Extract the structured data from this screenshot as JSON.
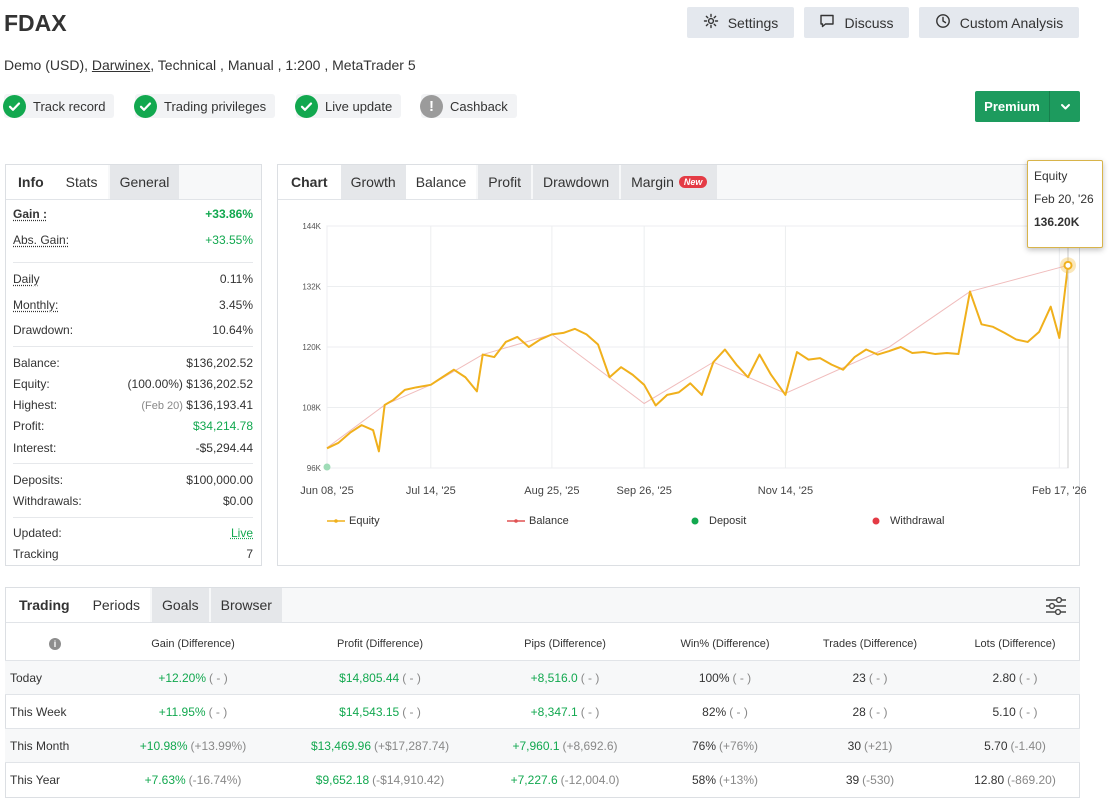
{
  "header": {
    "title": "FDAX",
    "account_type": "Demo (USD),",
    "broker": "Darwinex",
    "details": ", Technical , Manual , 1:200 , MetaTrader 5",
    "buttons": {
      "settings": "Settings",
      "discuss": "Discuss",
      "custom_analysis": "Custom Analysis"
    },
    "premium": "Premium"
  },
  "badges": [
    {
      "label": "Track record",
      "status": "ok"
    },
    {
      "label": "Trading privileges",
      "status": "ok"
    },
    {
      "label": "Live update",
      "status": "ok"
    },
    {
      "label": "Cashback",
      "status": "warning",
      "glyph": "!"
    }
  ],
  "info_panel": {
    "tabs": [
      "Info",
      "Stats",
      "General"
    ],
    "gain": {
      "label": "Gain :",
      "value": "+33.86%"
    },
    "abs_gain": {
      "label": "Abs. Gain:",
      "value": "+33.55%"
    },
    "daily": {
      "label": "Daily",
      "value": "0.11%"
    },
    "monthly": {
      "label": "Monthly:",
      "value": "3.45%"
    },
    "drawdown": {
      "label": "Drawdown:",
      "value": "10.64%"
    },
    "balance": {
      "label": "Balance:",
      "value": "$136,202.52"
    },
    "equity": {
      "label": "Equity:",
      "prefix": "(100.00%)",
      "value": "$136,202.52"
    },
    "highest": {
      "label": "Highest:",
      "prefix": "(Feb 20)",
      "value": "$136,193.41"
    },
    "profit": {
      "label": "Profit:",
      "value": "$34,214.78"
    },
    "interest": {
      "label": "Interest:",
      "value": "-$5,294.44"
    },
    "deposits": {
      "label": "Deposits:",
      "value": "$100,000.00"
    },
    "withdrawals": {
      "label": "Withdrawals:",
      "value": "$0.00"
    },
    "updated": {
      "label": "Updated:",
      "value": "Live"
    },
    "tracking": {
      "label": "Tracking",
      "value": "7"
    }
  },
  "chart_panel": {
    "tabs": [
      "Chart",
      "Growth",
      "Balance",
      "Profit",
      "Drawdown",
      "Margin"
    ],
    "new_badge": "New",
    "tooltip": {
      "series": "Equity",
      "date": "Feb 20, '26",
      "value": "136.20K"
    },
    "legend": [
      "Equity",
      "Balance",
      "Deposit",
      "Withdrawal"
    ],
    "colors": {
      "equity": "#f0b01c",
      "balance": "#e05252",
      "deposit": "#12a84f",
      "withdrawal": "#e43b45"
    }
  },
  "chart_data": {
    "type": "line",
    "x_ticks": [
      "Jun 08, '25",
      "Jul 14, '25",
      "Aug 25, '25",
      "Sep 26, '25",
      "Nov 14, '25",
      "Feb 17, '26"
    ],
    "y_ticks": [
      "96K",
      "108K",
      "120K",
      "132K",
      "144K"
    ],
    "ylim": [
      96000,
      144000
    ],
    "series": [
      {
        "name": "Equity",
        "x": [
          "2025-06-08",
          "2025-06-12",
          "2025-06-16",
          "2025-06-20",
          "2025-06-24",
          "2025-06-26",
          "2025-06-28",
          "2025-07-01",
          "2025-07-05",
          "2025-07-09",
          "2025-07-14",
          "2025-07-18",
          "2025-07-22",
          "2025-07-26",
          "2025-07-30",
          "2025-08-01",
          "2025-08-05",
          "2025-08-09",
          "2025-08-13",
          "2025-08-17",
          "2025-08-21",
          "2025-08-25",
          "2025-08-29",
          "2025-09-02",
          "2025-09-06",
          "2025-09-10",
          "2025-09-14",
          "2025-09-18",
          "2025-09-22",
          "2025-09-26",
          "2025-09-30",
          "2025-10-04",
          "2025-10-08",
          "2025-10-12",
          "2025-10-16",
          "2025-10-20",
          "2025-10-24",
          "2025-10-28",
          "2025-11-01",
          "2025-11-05",
          "2025-11-09",
          "2025-11-14",
          "2025-11-18",
          "2025-11-22",
          "2025-11-26",
          "2025-11-30",
          "2025-12-04",
          "2025-12-08",
          "2025-12-12",
          "2025-12-16",
          "2025-12-20",
          "2025-12-24",
          "2025-12-28",
          "2026-01-01",
          "2026-01-05",
          "2026-01-09",
          "2026-01-13",
          "2026-01-17",
          "2026-01-21",
          "2026-01-25",
          "2026-01-29",
          "2026-02-02",
          "2026-02-06",
          "2026-02-10",
          "2026-02-14",
          "2026-02-17",
          "2026-02-20"
        ],
        "values": [
          99900,
          101000,
          103000,
          104500,
          103500,
          99300,
          108500,
          109500,
          111500,
          112000,
          112500,
          114000,
          115500,
          114000,
          111200,
          118500,
          118000,
          121000,
          122000,
          120000,
          121500,
          122500,
          122800,
          123600,
          122500,
          120500,
          114000,
          116000,
          114500,
          112500,
          108400,
          110500,
          111000,
          112800,
          110500,
          117000,
          119500,
          116500,
          114000,
          118500,
          114500,
          110500,
          119000,
          117500,
          117800,
          116500,
          115500,
          118000,
          119500,
          118500,
          119200,
          120000,
          118800,
          119000,
          118600,
          118800,
          118600,
          131000,
          124500,
          124000,
          122800,
          121500,
          121000,
          123000,
          128000,
          121800,
          136202
        ]
      },
      {
        "name": "Balance",
        "x": [
          "2025-06-08",
          "2025-06-28",
          "2025-07-14",
          "2025-08-01",
          "2025-08-25",
          "2025-09-26",
          "2025-10-20",
          "2025-11-14",
          "2025-12-20",
          "2026-01-17",
          "2026-02-20"
        ],
        "values": [
          100000,
          108500,
          112500,
          118500,
          122500,
          108800,
          117000,
          110800,
          120000,
          131000,
          136202
        ]
      }
    ],
    "deposits": [
      {
        "x": "2025-06-08",
        "value": 100000
      }
    ],
    "withdrawals": [],
    "grid": true,
    "legend_position": "bottom"
  },
  "trading_panel": {
    "tabs": [
      "Trading",
      "Periods",
      "Goals",
      "Browser"
    ],
    "info_glyph": "i",
    "columns": [
      "",
      "Gain (Difference)",
      "Profit (Difference)",
      "Pips (Difference)",
      "Win% (Difference)",
      "Trades (Difference)",
      "Lots (Difference)"
    ],
    "rows": [
      {
        "period": "Today",
        "gain": "+12.20%",
        "gain_diff": "( - )",
        "profit": "$14,805.44",
        "profit_diff": "( - )",
        "pips": "+8,516.0",
        "pips_diff": "( - )",
        "win": "100%",
        "win_diff": "( - )",
        "trades": "23",
        "trades_diff": "( - )",
        "lots": "2.80",
        "lots_diff": "( - )"
      },
      {
        "period": "This Week",
        "gain": "+11.95%",
        "gain_diff": "( - )",
        "profit": "$14,543.15",
        "profit_diff": "( - )",
        "pips": "+8,347.1",
        "pips_diff": "( - )",
        "win": "82%",
        "win_diff": "( - )",
        "trades": "28",
        "trades_diff": "( - )",
        "lots": "5.10",
        "lots_diff": "( - )"
      },
      {
        "period": "This Month",
        "gain": "+10.98%",
        "gain_diff": "(+13.99%)",
        "profit": "$13,469.96",
        "profit_diff": "(+$17,287.74)",
        "pips": "+7,960.1",
        "pips_diff": "(+8,692.6)",
        "win": "76%",
        "win_diff": "(+76%)",
        "trades": "30",
        "trades_diff": "(+21)",
        "lots": "5.70",
        "lots_diff": "(-1.40)"
      },
      {
        "period": "This Year",
        "gain": "+7.63%",
        "gain_diff": "(-16.74%)",
        "profit": "$9,652.18",
        "profit_diff": "(-$14,910.42)",
        "pips": "+7,227.6",
        "pips_diff": "(-12,004.0)",
        "win": "58%",
        "win_diff": "(+13%)",
        "trades": "39",
        "trades_diff": "(-530)",
        "lots": "12.80",
        "lots_diff": "(-869.20)"
      }
    ]
  }
}
